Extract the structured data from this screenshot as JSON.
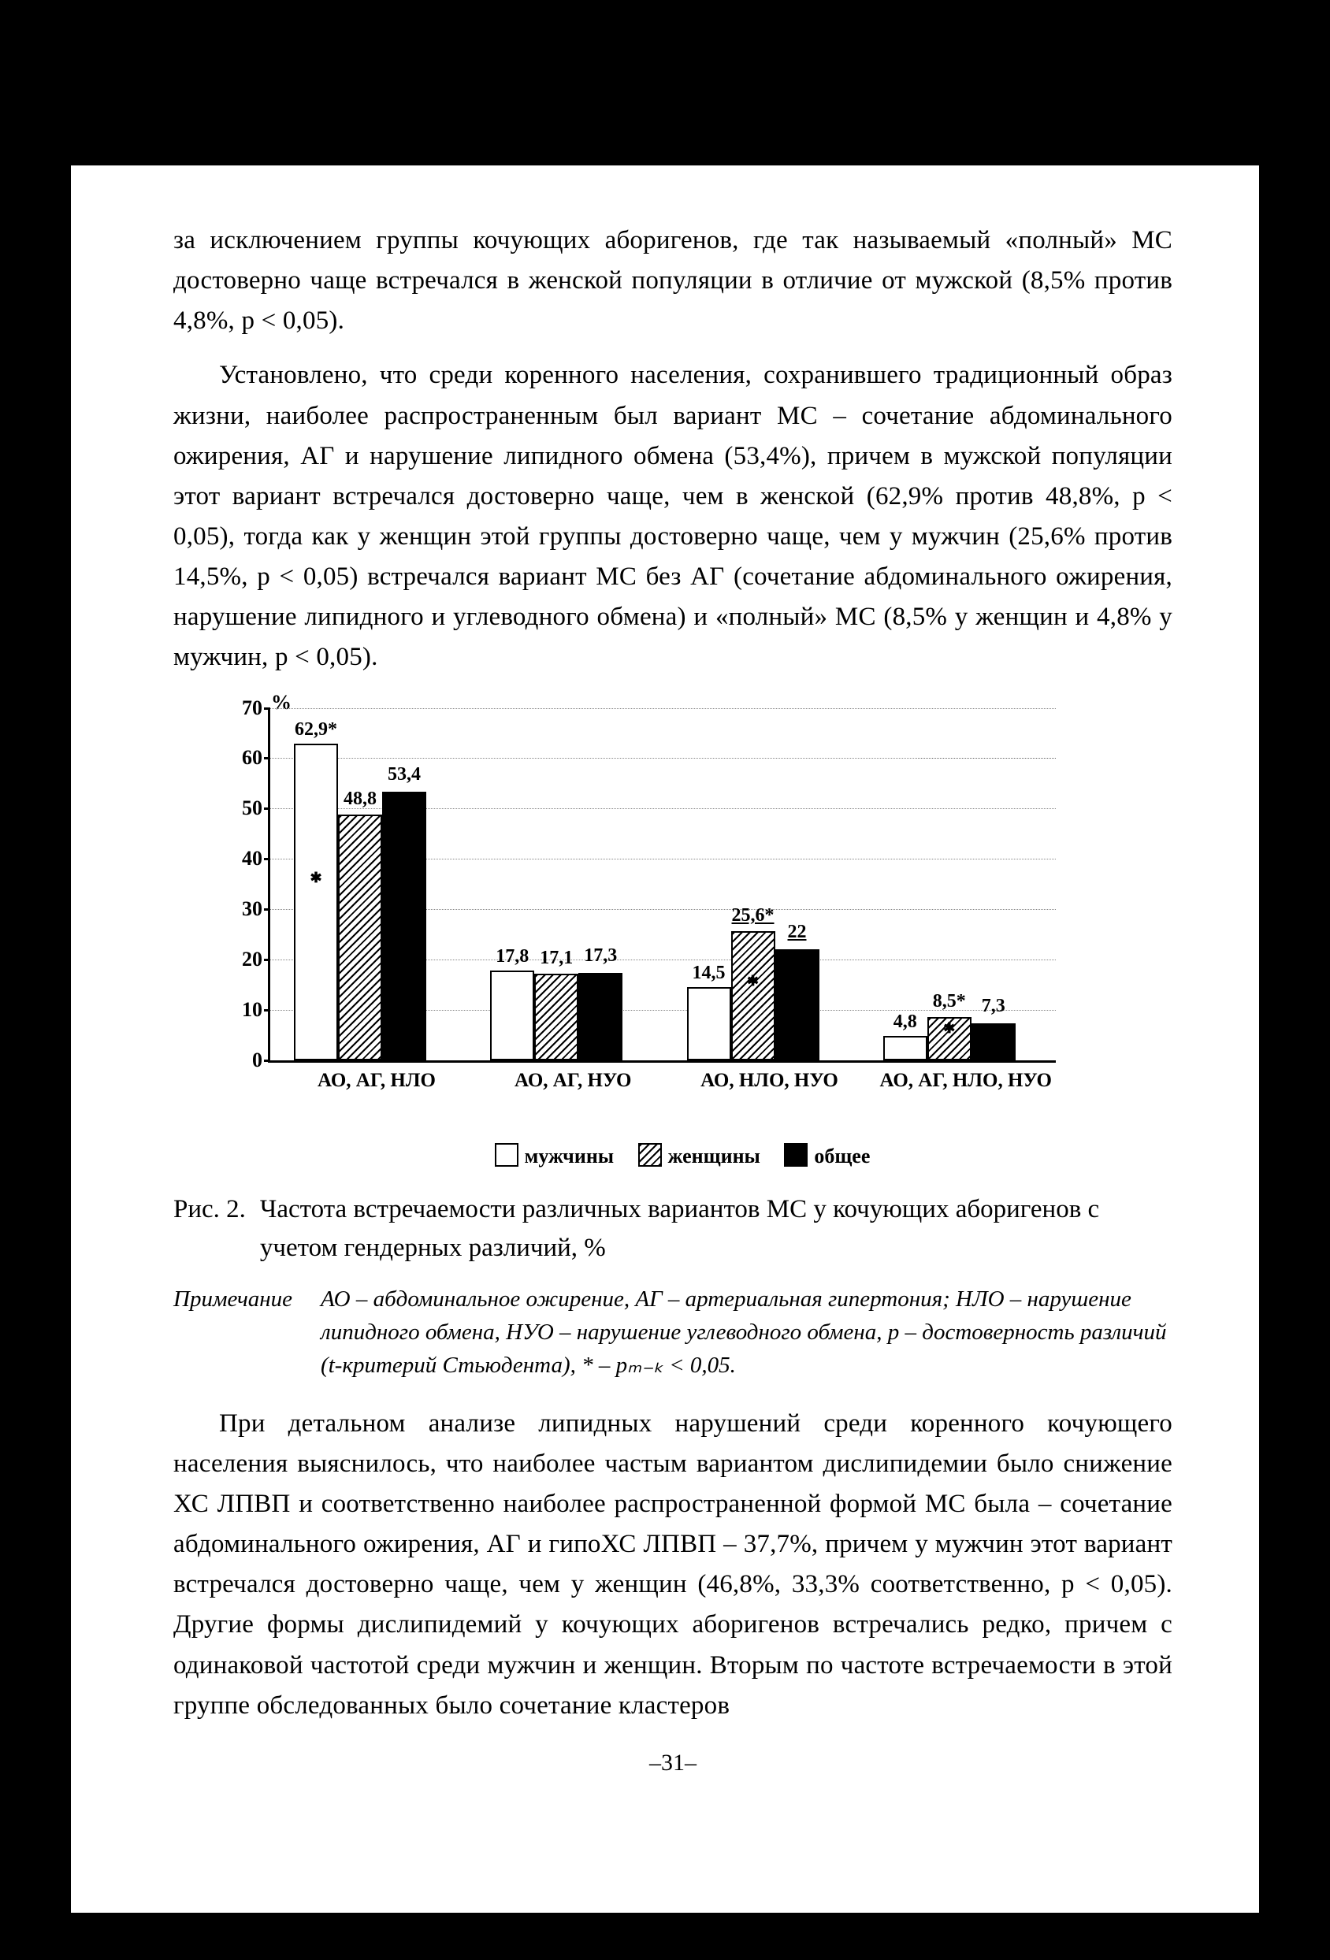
{
  "paragraph1": "за исключением группы кочующих аборигенов, где так называемый «пол­ный» МС достоверно чаще встречался в женской популяции в отличие от мужской (8,5% против 4,8%, p < 0,05).",
  "paragraph2": "Установлено, что среди коренного населения, сохранившего традици­онный образ жизни, наиболее распространенным был вариант МС – со­четание абдоминального ожирения, АГ и нарушение липидного обмена (53,4%), причем в мужской популяции этот вариант встречался достовер­но чаще, чем в женской (62,9% против 48,8%, p < 0,05), тогда как у жен­щин этой группы достоверно чаще, чем у мужчин (25,6% против 14,5%, p < 0,05) встречался вариант МС без АГ (сочетание абдоминального ожи­рения, нарушение липидного и углеводного обмена) и «полный» МС (8,5% у женщин и 4,8% у мужчин, p < 0,05).",
  "paragraph3": "При детальном анализе липидных нарушений среди коренного ко­чующего населения выяснилось, что наиболее частым вариантом дис­липидемии было снижение ХС ЛПВП и соответственно наиболее рас­пространенной формой МС была – сочетание абдоминального ожирения, АГ и гипоХС ЛПВП – 37,7%, причем у мужчин этот вариант встречался достоверно чаще, чем у женщин (46,8%, 33,3% соответственно, p < 0,05). Другие формы дислипидемий у кочующих аборигенов встречались редко, причем с одинаковой частотой среди мужчин и женщин. Вторым по часто­те встречаемости в этой группе обследованных было сочетание кластеров",
  "figure": {
    "y_unit": "%",
    "y_max": 70,
    "y_ticks": [
      0,
      10,
      20,
      30,
      40,
      50,
      60,
      70
    ],
    "categories": [
      "АО, АГ, НЛО",
      "АО, АГ, НУО",
      "АО, НЛО, НУО",
      "АО, АГ, НЛО, НУО"
    ],
    "series": [
      "мужчины",
      "женщины",
      "общее"
    ],
    "groups": [
      {
        "values": [
          62.9,
          48.8,
          53.4
        ],
        "labels": [
          "62,9*",
          "48,8",
          "53,4"
        ],
        "marks": [
          true,
          false,
          false
        ]
      },
      {
        "values": [
          17.8,
          17.1,
          17.3
        ],
        "labels": [
          "17,8",
          "17,1",
          "17,3"
        ],
        "marks": [
          false,
          false,
          false
        ]
      },
      {
        "values": [
          14.5,
          25.6,
          22.0
        ],
        "labels": [
          "14,5",
          "25,6*",
          "22"
        ],
        "marks": [
          false,
          true,
          false
        ],
        "underline_labels": [
          false,
          true,
          true
        ]
      },
      {
        "values": [
          4.8,
          8.5,
          7.3
        ],
        "labels": [
          "4,8",
          "8,5*",
          "7,3"
        ],
        "marks": [
          false,
          true,
          false
        ]
      }
    ],
    "legend": {
      "m": "мужчины",
      "f": "женщины",
      "all": "общее"
    },
    "caption_label": "Рис. 2.",
    "caption_text": "Частота встречаемости различных вариантов МС у кочующих або­ригенов с учетом гендерных различий, %",
    "note_label": "Примечание",
    "note_text": "АО – абдоминальное ожирение, АГ – артериальная гипертония; НЛО – нару­шение липидного обмена, НУО – нарушение углеводного обмена, p – достовер­ность различий (t-критерий Стьюдента), * – pₘ₋ₖ < 0,05.",
    "colors": {
      "white": "#ffffff",
      "black": "#000000",
      "grid": "#888888"
    }
  },
  "page_number": "–31–"
}
